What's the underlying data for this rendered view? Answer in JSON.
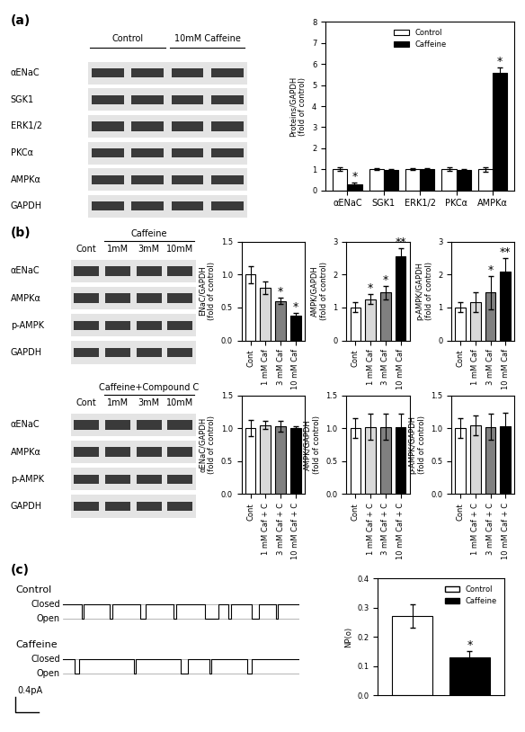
{
  "chart_data": [
    {
      "type": "bar",
      "categories": [
        "αENaC",
        "SGK1",
        "ERK1/2",
        "PKCα",
        "AMPKα"
      ],
      "series": [
        {
          "name": "Control",
          "color": "#ffffff",
          "values": [
            1.0,
            1.0,
            1.0,
            1.0,
            1.0
          ],
          "error": [
            0.08,
            0.05,
            0.05,
            0.08,
            0.1
          ]
        },
        {
          "name": "Caffeine",
          "color": "#000000",
          "values": [
            0.3,
            0.97,
            1.0,
            0.97,
            5.6
          ],
          "error": [
            0.05,
            0.05,
            0.04,
            0.06,
            0.25
          ]
        }
      ],
      "y_label": "Proteins/GAPDH\n(fold of control)",
      "ylim": [
        0,
        8
      ],
      "yticks": [
        0,
        1,
        2,
        3,
        4,
        5,
        6,
        7,
        8
      ],
      "legend": "upper center",
      "grid": false,
      "annotations": [
        {
          "series": "Caffeine",
          "category": "αENaC",
          "text": "*"
        },
        {
          "series": "Caffeine",
          "category": "AMPKα",
          "text": "*"
        }
      ]
    },
    {
      "type": "bar",
      "categories": [
        "Cont",
        "1 mM Caf",
        "3 mM Caf",
        "10 mM Caf"
      ],
      "values": [
        1.0,
        0.8,
        0.6,
        0.37
      ],
      "error": [
        0.13,
        0.1,
        0.05,
        0.05
      ],
      "colors": [
        "#ffffff",
        "#d9d9d9",
        "#808080",
        "#000000"
      ],
      "y_label": "ENaC/GAPDH\n(fold of control)",
      "ylim": [
        0.0,
        1.5
      ],
      "yticks": [
        0.0,
        0.5,
        1.0,
        1.5
      ],
      "grid": false,
      "annotations": [
        {
          "category": "3 mM Caf",
          "text": "*"
        },
        {
          "category": "10 mM Caf",
          "text": "*"
        }
      ]
    },
    {
      "type": "bar",
      "categories": [
        "Cont",
        "1 mM Caf",
        "3 mM Caf",
        "10 mM Caf"
      ],
      "values": [
        1.0,
        1.25,
        1.45,
        2.55
      ],
      "error": [
        0.15,
        0.15,
        0.2,
        0.25
      ],
      "colors": [
        "#ffffff",
        "#d9d9d9",
        "#808080",
        "#000000"
      ],
      "y_label": "AMPK/GAPDH\n(fold of control)",
      "ylim": [
        0,
        3
      ],
      "yticks": [
        0,
        1,
        2,
        3
      ],
      "grid": false,
      "annotations": [
        {
          "category": "1 mM Caf",
          "text": "*"
        },
        {
          "category": "3 mM Caf",
          "text": "*"
        },
        {
          "category": "10 mM Caf",
          "text": "**"
        }
      ]
    },
    {
      "type": "bar",
      "categories": [
        "Cont",
        "1 mM Caf",
        "3 mM Caf",
        "10 mM Caf"
      ],
      "values": [
        1.0,
        1.15,
        1.45,
        2.1
      ],
      "error": [
        0.15,
        0.3,
        0.5,
        0.4
      ],
      "colors": [
        "#ffffff",
        "#d9d9d9",
        "#808080",
        "#000000"
      ],
      "y_label": "p-AMPK/GAPDH\n(fold of control)",
      "ylim": [
        0,
        3
      ],
      "yticks": [
        0,
        1,
        2,
        3
      ],
      "grid": false,
      "annotations": [
        {
          "category": "3 mM Caf",
          "text": "*"
        },
        {
          "category": "10 mM Caf",
          "text": "**"
        }
      ]
    },
    {
      "type": "bar",
      "categories": [
        "Cont",
        "1 mM Caf + C",
        "3 mM Caf + C",
        "10 mM Caf + C"
      ],
      "values": [
        1.0,
        1.05,
        1.03,
        1.0
      ],
      "error": [
        0.12,
        0.06,
        0.08,
        0.03
      ],
      "colors": [
        "#ffffff",
        "#d9d9d9",
        "#808080",
        "#000000"
      ],
      "y_label": "αENaC/GAPDH\n(fold of control)",
      "ylim": [
        0.0,
        1.5
      ],
      "yticks": [
        0.0,
        0.5,
        1.0,
        1.5
      ],
      "grid": false
    },
    {
      "type": "bar",
      "categories": [
        "Cont",
        "1 mM Caf + C",
        "3 mM Caf + C",
        "10 mM Caf + C"
      ],
      "values": [
        1.0,
        1.02,
        1.02,
        1.02
      ],
      "error": [
        0.15,
        0.2,
        0.2,
        0.2
      ],
      "colors": [
        "#ffffff",
        "#d9d9d9",
        "#808080",
        "#000000"
      ],
      "y_label": "AMPK/GAPDH\n(fold of control)",
      "ylim": [
        0.0,
        1.5
      ],
      "yticks": [
        0.0,
        0.5,
        1.0,
        1.5
      ],
      "grid": false
    },
    {
      "type": "bar",
      "categories": [
        "Cont",
        "1 mM Caf + C",
        "3 mM Caf + C",
        "10 mM Caf + C"
      ],
      "values": [
        1.0,
        1.05,
        1.02,
        1.03
      ],
      "error": [
        0.15,
        0.15,
        0.2,
        0.2
      ],
      "colors": [
        "#ffffff",
        "#d9d9d9",
        "#808080",
        "#000000"
      ],
      "y_label": "p-AMPK/GAPDH\n(fold of control)",
      "ylim": [
        0.0,
        1.5
      ],
      "yticks": [
        0.0,
        0.5,
        1.0,
        1.5
      ],
      "grid": false
    },
    {
      "type": "bar",
      "categories": [
        "Control",
        "Caffeine"
      ],
      "values": [
        0.27,
        0.13
      ],
      "error": [
        0.04,
        0.02
      ],
      "colors": [
        "#ffffff",
        "#000000"
      ],
      "y_label": "NP(o)",
      "ylim": [
        0.0,
        0.4
      ],
      "yticks": [
        0.0,
        0.1,
        0.2,
        0.3,
        0.4
      ],
      "grid": false,
      "legend": "upper right",
      "tick_labels": "y",
      "annotations": [
        {
          "category": "Caffeine",
          "text": "*"
        }
      ]
    }
  ],
  "blots": [
    {
      "panel": "(a)",
      "groups": [
        "Control",
        "10mM Caffeine"
      ],
      "rows": [
        "αENaC",
        "SGK1",
        "ERK1/2",
        "PKCα",
        "AMPKα",
        "GAPDH"
      ]
    },
    {
      "panel": "(b)",
      "control": "Cont",
      "group": "Caffeine",
      "lanes": [
        "1mM",
        "3mM",
        "10mM"
      ],
      "rows": [
        "αENaC",
        "AMPKα",
        "p-AMPK",
        "GAPDH"
      ]
    },
    {
      "control": "Cont",
      "group": "Caffeine+Compound C",
      "lanes": [
        "1mM",
        "3mM",
        "10mM"
      ],
      "rows": [
        "αENaC",
        "AMPKα",
        "p-AMPK",
        "GAPDH"
      ]
    }
  ],
  "traces": {
    "panel": "(c)",
    "scale": "0.4pA",
    "levels": [
      "Closed",
      "Open"
    ],
    "items": [
      {
        "title": "Control",
        "openings": [
          [
            8,
            9
          ],
          [
            20,
            21
          ],
          [
            33,
            35
          ],
          [
            47,
            48
          ],
          [
            60,
            66
          ],
          [
            70,
            71
          ],
          [
            80,
            83
          ],
          [
            90,
            91
          ]
        ]
      },
      {
        "title": "Caffeine",
        "openings": [
          [
            5,
            7
          ],
          [
            30,
            31
          ],
          [
            50,
            53
          ],
          [
            62,
            63
          ],
          [
            78,
            80
          ]
        ]
      }
    ]
  }
}
